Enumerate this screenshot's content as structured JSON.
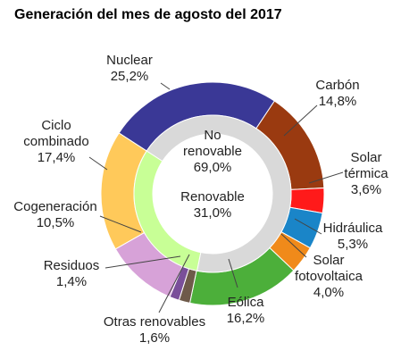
{
  "chart_data": {
    "type": "pie",
    "title": "Generación del mes de agosto del 2017",
    "outer_ring": [
      {
        "name": "Nuclear",
        "value": 25.2,
        "label": "25,2%",
        "color": "#3a3896"
      },
      {
        "name": "Carbón",
        "value": 14.8,
        "label": "14,8%",
        "color": "#9a3a10"
      },
      {
        "name": "Solar térmica",
        "value": 3.6,
        "label": "3,6%",
        "color": "#ff1a1a"
      },
      {
        "name": "Hidráulica",
        "value": 5.3,
        "label": "5,3%",
        "color": "#1a85c8"
      },
      {
        "name": "Solar fotovoltaica",
        "value": 4.0,
        "label": "4,0%",
        "color": "#f08a1a"
      },
      {
        "name": "Eólica",
        "value": 16.2,
        "label": "16,2%",
        "color": "#4caf3a"
      },
      {
        "name": "Otras renovables",
        "value": 1.6,
        "label": "1,6%",
        "color": "#6e5a4a"
      },
      {
        "name": "Residuos",
        "value": 1.4,
        "label": "1,4%",
        "color": "#7a4f9a"
      },
      {
        "name": "Cogeneración",
        "value": 10.5,
        "label": "10,5%",
        "color": "#d7a2d8"
      },
      {
        "name": "Ciclo combinado",
        "value": 17.4,
        "label": "17,4%",
        "color": "#ffc95a"
      }
    ],
    "inner_ring": [
      {
        "name": "No renovable",
        "value": 69.0,
        "label": "69,0%",
        "color": "#d9d9d9"
      },
      {
        "name": "Renovable",
        "value": 31.0,
        "label": "31,0%",
        "color": "#c8ff96"
      }
    ]
  }
}
